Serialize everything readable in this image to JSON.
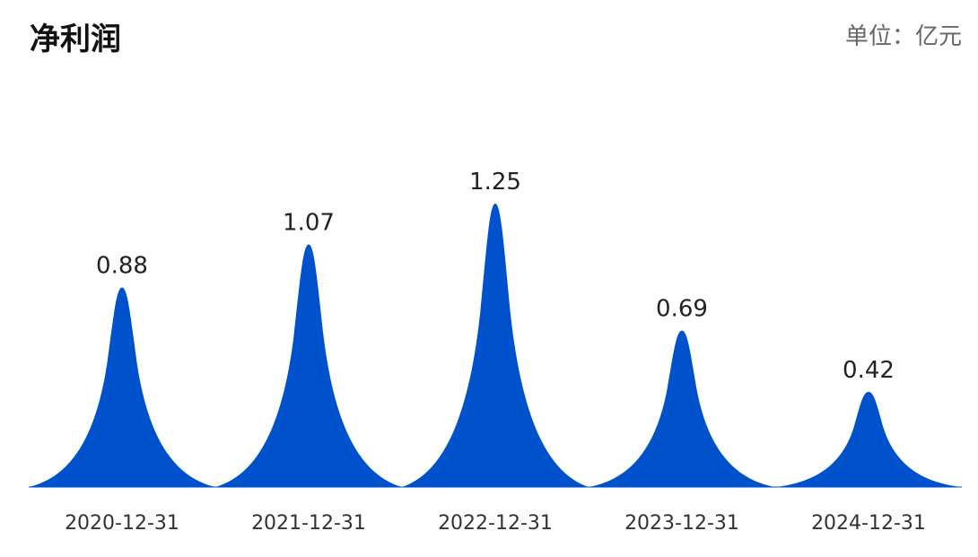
{
  "header": {
    "title": "净利润",
    "unit": "单位：亿元"
  },
  "chart_data": {
    "type": "bar",
    "title": "净利润",
    "unit": "单位：亿元",
    "categories": [
      "2020-12-31",
      "2021-12-31",
      "2022-12-31",
      "2023-12-31",
      "2024-12-31"
    ],
    "values": [
      0.88,
      1.07,
      1.25,
      0.69,
      0.42
    ],
    "value_labels": [
      "0.88",
      "1.07",
      "1.25",
      "0.69",
      "0.42"
    ],
    "ylim": [
      0,
      1.25
    ],
    "grid": false,
    "bar_shape": "peak",
    "color": "#0052CC"
  }
}
